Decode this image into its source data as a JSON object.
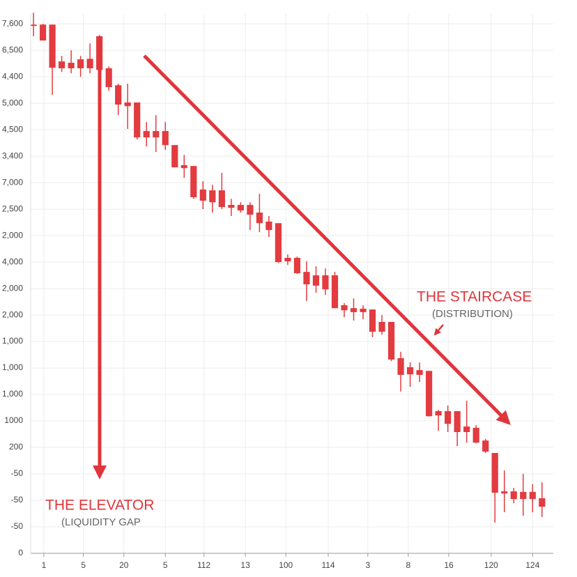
{
  "chart_data": {
    "type": "candlestick",
    "color": "#e23b40",
    "grid": true,
    "x": [
      1,
      2,
      3,
      4,
      5,
      6,
      7,
      8,
      9,
      10,
      11,
      12,
      13,
      14,
      15,
      16,
      17,
      18,
      19,
      20,
      21,
      22,
      23,
      24,
      25,
      26,
      27,
      28,
      29,
      30,
      31,
      32,
      33,
      34,
      35,
      36,
      37,
      38,
      39,
      40,
      41,
      42,
      43,
      44,
      45,
      46,
      47,
      48,
      49,
      50,
      51,
      52,
      53,
      54,
      55
    ],
    "open": [
      19.97,
      19.97,
      19.97,
      18.58,
      18.53,
      18.66,
      18.68,
      19.53,
      18.32,
      17.68,
      17.03,
      17.03,
      15.95,
      15.95,
      15.95,
      15.42,
      14.66,
      14.63,
      13.74,
      13.71,
      13.71,
      13.16,
      13.16,
      13.16,
      12.87,
      12.53,
      12.47,
      11.16,
      11.16,
      10.63,
      10.5,
      10.5,
      10.5,
      9.37,
      9.26,
      9.24,
      9.21,
      8.74,
      8.74,
      7.37,
      7.03,
      6.92,
      6.89,
      5.37,
      5.37,
      5.37,
      4.79,
      4.74,
      4.26,
      3.79,
      2.34,
      2.34,
      2.32,
      2.32,
      2.08
    ],
    "high": [
      20.42,
      20.0,
      19.97,
      18.79,
      19.0,
      18.79,
      19.26,
      19.58,
      18.39,
      17.74,
      17.74,
      17.03,
      16.29,
      16.55,
      16.29,
      15.42,
      15.05,
      14.63,
      14.05,
      13.92,
      14.37,
      13.39,
      13.26,
      13.26,
      13.58,
      12.74,
      12.47,
      11.29,
      11.21,
      11.03,
      10.84,
      10.76,
      10.63,
      9.45,
      9.63,
      9.37,
      9.21,
      9.0,
      8.74,
      7.61,
      7.21,
      7.21,
      6.89,
      5.42,
      5.58,
      5.37,
      5.76,
      4.84,
      4.32,
      3.79,
      3.13,
      2.47,
      3.0,
      2.61,
      2.68
    ],
    "low": [
      19.53,
      19.37,
      17.32,
      18.18,
      18.13,
      18.0,
      18.13,
      18.0,
      17.47,
      16.55,
      16.03,
      15.63,
      15.37,
      15.16,
      15.24,
      14.58,
      14.18,
      13.39,
      13.0,
      12.87,
      13.0,
      12.74,
      12.87,
      12.21,
      12.13,
      11.95,
      10.97,
      10.89,
      10.55,
      9.53,
      9.84,
      9.76,
      9.26,
      8.92,
      8.79,
      8.84,
      8.16,
      8.26,
      7.26,
      6.11,
      6.29,
      6.47,
      5.16,
      4.63,
      4.58,
      4.05,
      4.18,
      4.16,
      3.79,
      1.16,
      1.55,
      1.89,
      1.42,
      1.55,
      1.37
    ],
    "close": [
      19.92,
      19.37,
      18.34,
      18.32,
      18.32,
      18.32,
      18.32,
      18.26,
      17.61,
      16.95,
      16.89,
      15.71,
      15.71,
      15.71,
      15.42,
      14.58,
      14.55,
      13.45,
      13.32,
      13.26,
      13.08,
      13.05,
      12.95,
      12.79,
      12.47,
      12.21,
      11.0,
      11.03,
      10.58,
      10.16,
      10.11,
      9.97,
      9.26,
      9.18,
      9.11,
      9.11,
      8.37,
      8.37,
      7.32,
      6.74,
      6.76,
      6.74,
      5.18,
      5.21,
      4.89,
      4.58,
      4.58,
      4.18,
      3.84,
      2.29,
      2.26,
      2.05,
      2.05,
      2.05,
      1.76
    ],
    "xlim": [
      0.7,
      56.2
    ],
    "xticks": [
      {
        "value": 2.1,
        "label": "1"
      },
      {
        "value": 6.3,
        "label": "5"
      },
      {
        "value": 10.6,
        "label": "20"
      },
      {
        "value": 15,
        "label": "5"
      },
      {
        "value": 19.1,
        "label": "112"
      },
      {
        "value": 23.5,
        "label": "13"
      },
      {
        "value": 27.8,
        "label": "100"
      },
      {
        "value": 32.3,
        "label": "114"
      },
      {
        "value": 36.5,
        "label": "3"
      },
      {
        "value": 40.8,
        "label": "8"
      },
      {
        "value": 45.1,
        "label": "16"
      },
      {
        "value": 49.6,
        "label": "120"
      },
      {
        "value": 54,
        "label": "124"
      }
    ],
    "ylim": [
      0,
      20.9
    ],
    "yticks": [
      0,
      {
        "value": 1,
        "label": "-50"
      },
      {
        "value": 2,
        "label": "-50"
      },
      {
        "value": 3,
        "label": "-50"
      },
      {
        "value": 4,
        "label": "200"
      },
      {
        "value": 5,
        "label": "1000"
      },
      {
        "value": 6,
        "label": "1,000"
      },
      {
        "value": 7,
        "label": "1,000"
      },
      {
        "value": 8,
        "label": "1,000"
      },
      {
        "value": 9,
        "label": "2,000"
      },
      {
        "value": 10,
        "label": "2,000"
      },
      {
        "value": 11,
        "label": "4,000"
      },
      {
        "value": 12,
        "label": "2,000"
      },
      {
        "value": 13,
        "label": "2,500"
      },
      {
        "value": 14,
        "label": "7,000"
      },
      {
        "value": 15,
        "label": "3,400"
      },
      {
        "value": 16,
        "label": "4,500"
      },
      {
        "value": 17,
        "label": "5,000"
      },
      {
        "value": 18,
        "label": "4,400"
      },
      {
        "value": 19,
        "label": "6,500"
      },
      {
        "value": 20,
        "label": "7,600"
      }
    ],
    "annotations": [
      {
        "text": "THE ELEVATOR",
        "subtext": "(LIQUIDITY GAP"
      },
      {
        "text": "THE STAIRCASE",
        "subtext": "(DISTRIBUTION)"
      }
    ]
  }
}
